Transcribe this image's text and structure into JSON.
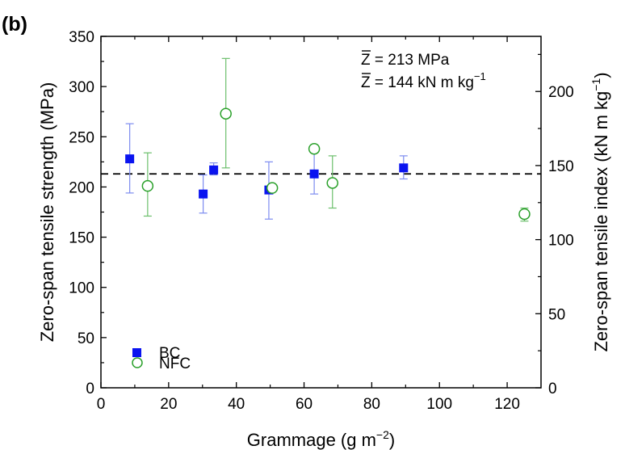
{
  "chart_data": {
    "type": "scatter",
    "panel_label": "(b)",
    "xlabel": {
      "base": "Grammage (g m",
      "exp": "−2",
      "close": ")"
    },
    "ylabel": "Zero-span tensile strength (MPa)",
    "y2label": {
      "base": "Zero-span tensile index (kN m kg",
      "exp": "−1",
      "close": ")"
    },
    "xlim": [
      0,
      130
    ],
    "ylim": [
      0,
      350
    ],
    "y2lim": [
      0,
      237.2
    ],
    "x_ticks": [
      0,
      20,
      40,
      60,
      80,
      100,
      120
    ],
    "x_tick_labels": [
      "0",
      "20",
      "40",
      "60",
      "80",
      "100",
      "120"
    ],
    "y_ticks": [
      0,
      50,
      100,
      150,
      200,
      250,
      300,
      350
    ],
    "y_tick_labels": [
      "0",
      "50",
      "100",
      "150",
      "200",
      "250",
      "300",
      "350"
    ],
    "y2_ticks": [
      0,
      50,
      100,
      150,
      200
    ],
    "y2_tick_labels": [
      "0",
      "50",
      "100",
      "150",
      "200"
    ],
    "grid": false,
    "legend_position": "bottom-left",
    "reference_line": {
      "y": 213,
      "style": "dashed",
      "color": "#000000"
    },
    "annotations": [
      {
        "symbol": "Z",
        "text": " = 213 MPa",
        "exp": ""
      },
      {
        "symbol": "Z",
        "text": " = 144 kN m kg",
        "exp": "−1"
      }
    ],
    "series": [
      {
        "name": "BC",
        "marker": "square-filled",
        "color": "#0a14f0",
        "errcolor": "#7d8cf0",
        "points": [
          {
            "x": 8.5,
            "y": 228,
            "ylow": 194,
            "yhigh": 263
          },
          {
            "x": 30.2,
            "y": 193,
            "ylow": 174,
            "yhigh": 212
          },
          {
            "x": 33.3,
            "y": 217,
            "ylow": 212,
            "yhigh": 224
          },
          {
            "x": 49.6,
            "y": 197,
            "ylow": 168,
            "yhigh": 225
          },
          {
            "x": 63.0,
            "y": 213,
            "ylow": 193,
            "yhigh": 235
          },
          {
            "x": 89.4,
            "y": 219,
            "ylow": 208,
            "yhigh": 231
          }
        ]
      },
      {
        "name": "NFC",
        "marker": "circle-open",
        "color": "#2aa02a",
        "errcolor": "#6cbf6c",
        "points": [
          {
            "x": 13.8,
            "y": 201,
            "ylow": 171,
            "yhigh": 234
          },
          {
            "x": 36.9,
            "y": 273,
            "ylow": 219,
            "yhigh": 328
          },
          {
            "x": 50.6,
            "y": 199,
            "ylow": 196,
            "yhigh": 202
          },
          {
            "x": 63.0,
            "y": 238,
            "ylow": 234,
            "yhigh": 242
          },
          {
            "x": 68.4,
            "y": 204,
            "ylow": 179,
            "yhigh": 231
          },
          {
            "x": 125.1,
            "y": 173,
            "ylow": 166,
            "yhigh": 179
          }
        ]
      }
    ]
  }
}
